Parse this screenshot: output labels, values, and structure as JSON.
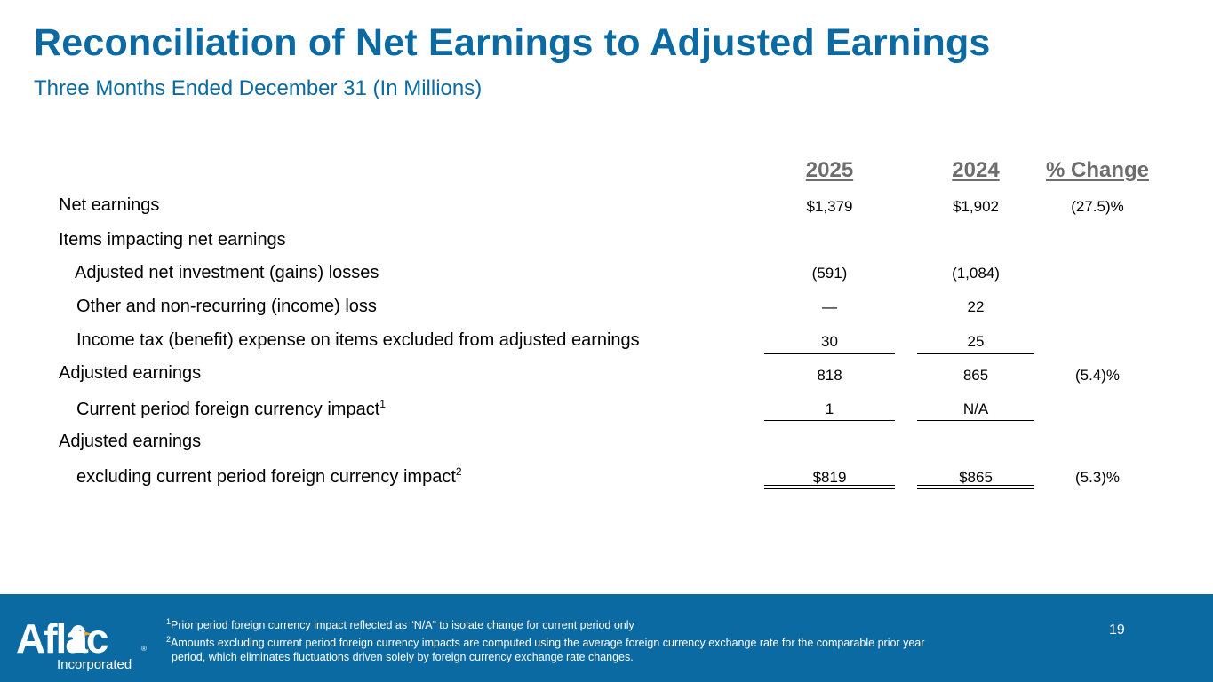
{
  "header": {
    "title": "Reconciliation of Net Earnings to Adjusted Earnings",
    "subtitle": "Three Months Ended December 31 (In Millions)"
  },
  "table": {
    "columns": [
      "2025",
      "2024",
      "% Change"
    ],
    "rows": [
      {
        "label": "Net earnings",
        "v2025": "$1,379",
        "v2024": "$1,902",
        "change": "(27.5)%"
      },
      {
        "label": "Items impacting net earnings",
        "v2025": "",
        "v2024": "",
        "change": ""
      },
      {
        "label": "Adjusted net investment (gains) losses",
        "v2025": "(591)",
        "v2024": "(1,084)",
        "change": ""
      },
      {
        "label": "Other and non-recurring (income) loss",
        "v2025": "—",
        "v2024": "22",
        "change": ""
      },
      {
        "label": "Income tax (benefit) expense on items excluded from adjusted earnings",
        "v2025": "30",
        "v2024": "25",
        "change": ""
      },
      {
        "label": "Adjusted earnings",
        "v2025": "818",
        "v2024": "865",
        "change": "(5.4)%"
      },
      {
        "label": "Current period foreign currency impact",
        "sup": "1",
        "v2025": "1",
        "v2024": "N/A",
        "change": ""
      },
      {
        "label": "Adjusted earnings",
        "v2025": "",
        "v2024": "",
        "change": ""
      },
      {
        "label": "excluding current period foreign currency impact",
        "sup": "2",
        "v2025": "$819",
        "v2024": "$865",
        "change": "(5.3)%"
      }
    ]
  },
  "footer": {
    "logo_text": "Aflac",
    "logo_sub": "Incorporated",
    "logo_reg": "®",
    "note1_num": "1",
    "note1": "Prior period foreign currency impact reflected as “N/A” to isolate change for current period only",
    "note2_num": "2",
    "note2_line1": "Amounts excluding current period foreign currency impacts are computed using the average foreign currency exchange rate for the comparable prior year",
    "note2_line2": "period, which eliminates fluctuations driven solely by foreign currency exchange rate changes.",
    "page_number": "19"
  },
  "colors": {
    "brand_blue": "#0a6aa1",
    "header_gray": "#6d6d6d"
  }
}
